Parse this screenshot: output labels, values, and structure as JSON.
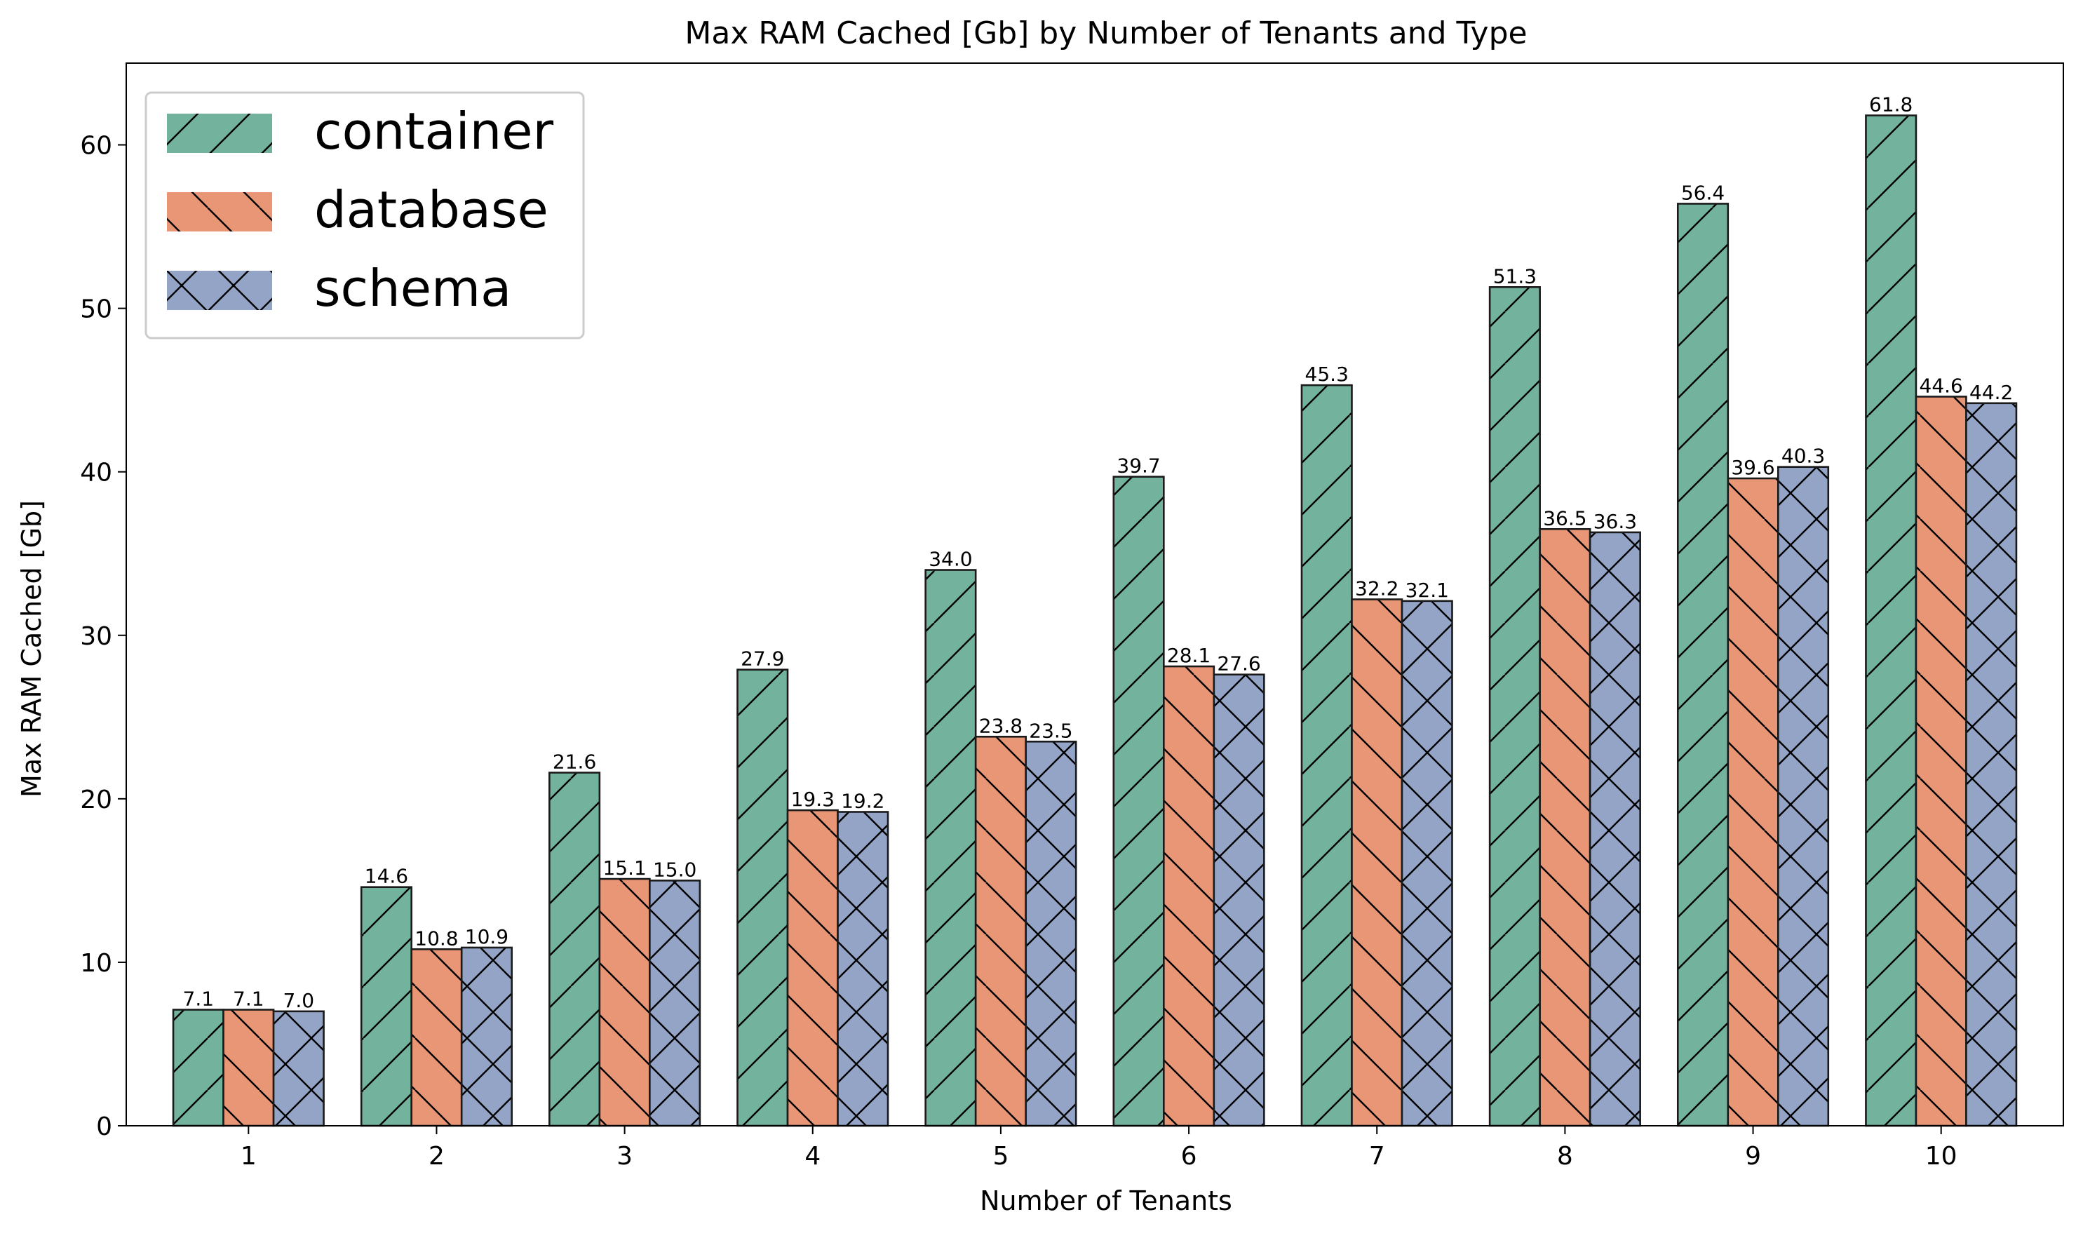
{
  "chart_data": {
    "type": "bar",
    "title": "Max RAM Cached [Gb] by Number of Tenants and Type",
    "xlabel": "Number of Tenants",
    "ylabel": "Max RAM Cached [Gb]",
    "categories": [
      "1",
      "2",
      "3",
      "4",
      "5",
      "6",
      "7",
      "8",
      "9",
      "10"
    ],
    "ylim": [
      0,
      65
    ],
    "yticks": [
      "0",
      "10",
      "20",
      "30",
      "40",
      "50",
      "60"
    ],
    "legend_position": "top-left",
    "grid": false,
    "series": [
      {
        "name": "container",
        "color": "#73b39e",
        "hatch": "forward-slash",
        "values": [
          7.1,
          14.6,
          21.6,
          27.9,
          34.0,
          39.7,
          45.3,
          51.3,
          56.4,
          61.8
        ],
        "labels": [
          "7.1",
          "14.6",
          "21.6",
          "27.9",
          "34.0",
          "39.7",
          "45.3",
          "51.3",
          "56.4",
          "61.8"
        ]
      },
      {
        "name": "database",
        "color": "#e89676",
        "hatch": "back-slash",
        "values": [
          7.1,
          10.8,
          15.1,
          19.3,
          23.8,
          28.1,
          32.2,
          36.5,
          39.6,
          44.6
        ],
        "labels": [
          "7.1",
          "10.8",
          "15.1",
          "19.3",
          "23.8",
          "28.1",
          "32.2",
          "36.5",
          "39.6",
          "44.6"
        ]
      },
      {
        "name": "schema",
        "color": "#93a4c6",
        "hatch": "cross",
        "values": [
          7.0,
          10.9,
          15.0,
          19.2,
          23.5,
          27.6,
          32.1,
          36.3,
          40.3,
          44.2
        ],
        "labels": [
          "7.0",
          "10.9",
          "15.0",
          "19.2",
          "23.5",
          "27.6",
          "32.1",
          "36.3",
          "40.3",
          "44.2"
        ]
      }
    ]
  }
}
